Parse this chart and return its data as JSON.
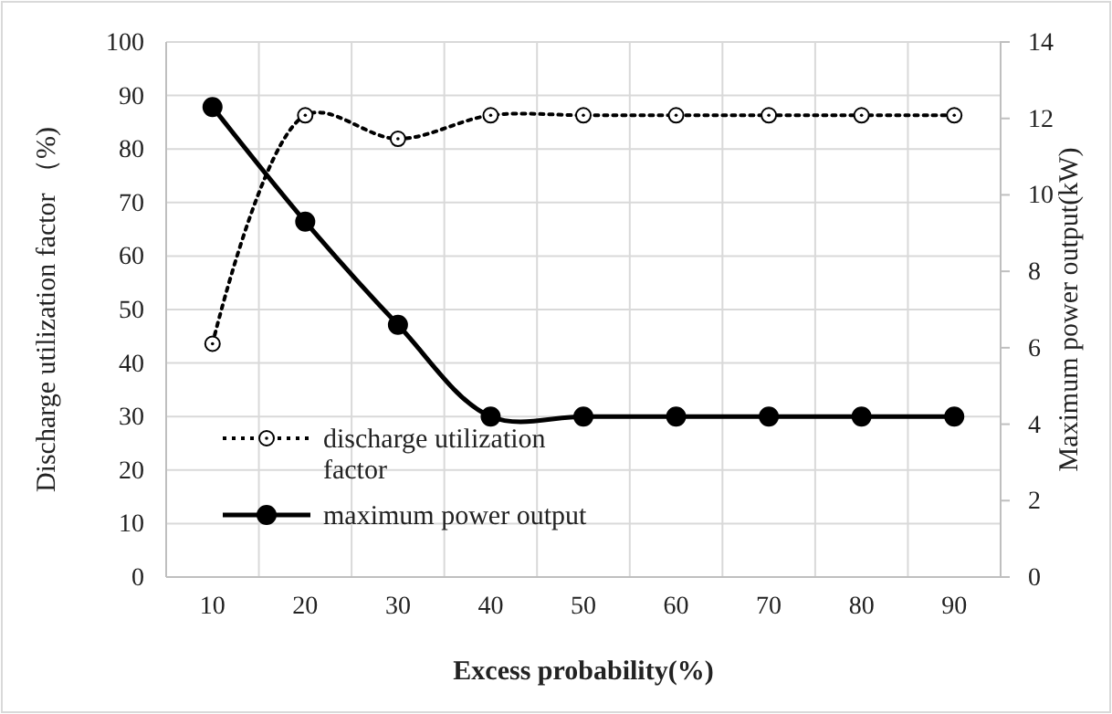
{
  "chart_data": {
    "type": "line",
    "xlabel": "Excess probability(%)",
    "ylabel": "Discharge utilization factor （%)",
    "y2label": "Maximum power output(kW)",
    "categories": [
      "10",
      "20",
      "30",
      "40",
      "50",
      "60",
      "70",
      "80",
      "90"
    ],
    "series": [
      {
        "name": "discharge utilization factor",
        "color": "#000000",
        "line_style": "dotted",
        "values": [
          43.6,
          86.3,
          81.9,
          86.3,
          86.3,
          86.3,
          86.3,
          86.3,
          86.3
        ]
      },
      {
        "name": "maximum power output",
        "color": "#000000",
        "line_style": "solid",
        "axis": "y2",
        "values": [
          12.3,
          9.3,
          6.6,
          4.2,
          4.2,
          4.2,
          4.2,
          4.2,
          4.2
        ]
      }
    ],
    "ylim": [
      0,
      100
    ],
    "yticks": [
      0,
      10,
      20,
      30,
      40,
      50,
      60,
      70,
      80,
      90,
      100
    ],
    "y2lim": [
      0,
      14
    ],
    "y2ticks": [
      0,
      2,
      4,
      6,
      8,
      10,
      12,
      14
    ],
    "grid": true,
    "legend": "bottom left",
    "marker": "circle"
  }
}
